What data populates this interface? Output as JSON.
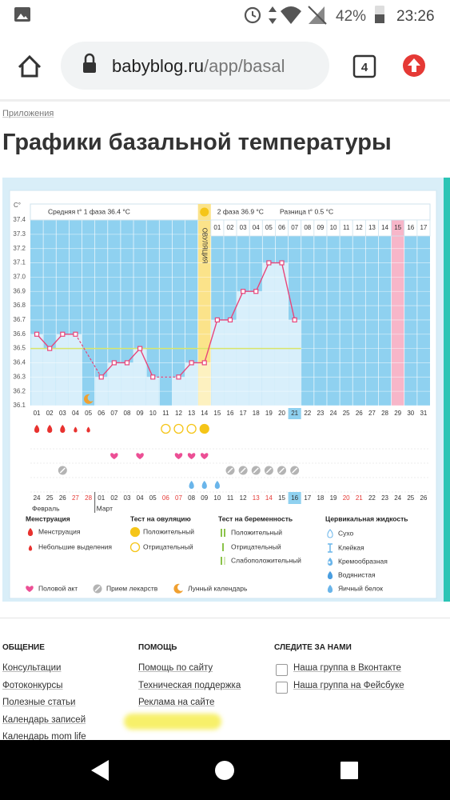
{
  "status": {
    "battery": "42%",
    "time": "23:26"
  },
  "browser": {
    "url_host": "babyblog.ru",
    "url_path": "/app/basal",
    "tab_count": 4
  },
  "breadcrumb": "Приложения",
  "title": "Графики базальной температуры",
  "chart_data": {
    "type": "line",
    "y_unit": "C°",
    "categories": [
      "01",
      "02",
      "03",
      "04",
      "05",
      "06",
      "07",
      "08",
      "09",
      "10",
      "11",
      "12",
      "13",
      "14",
      "15",
      "16",
      "17",
      "18",
      "19",
      "20",
      "21",
      "22",
      "23",
      "24",
      "25",
      "26",
      "27",
      "28",
      "29",
      "30",
      "31"
    ],
    "values": [
      36.6,
      36.5,
      36.6,
      36.6,
      null,
      36.3,
      36.4,
      36.4,
      36.5,
      36.3,
      null,
      36.3,
      36.4,
      36.4,
      36.7,
      36.7,
      36.9,
      36.9,
      37.1,
      37.1,
      36.7,
      null,
      null,
      null,
      null,
      null,
      null,
      null,
      null,
      null,
      null
    ],
    "ylim": [
      36.1,
      37.4
    ],
    "yticks": [
      36.1,
      36.2,
      36.3,
      36.4,
      36.5,
      36.6,
      36.7,
      36.8,
      36.9,
      {
        "value": 37,
        "label": "37.0"
      },
      37.1,
      37.2,
      37.3,
      37.4
    ],
    "line_color": "#e8457a",
    "bar_color": "#d8effb",
    "background_color": "#8fd1f0",
    "coverline": 36.5,
    "phase1_label": "Средняя t° 1 фаза 36.4 °C",
    "phase2_label": "2 фаза 36.9 °C",
    "difference_label": "Разница t° 0.5 °C",
    "ovulation_label": "ОВУЛЯЦИЯ",
    "ovulation_day": 14,
    "pink_day": 29,
    "today": 21,
    "dpo_start_day": 15,
    "dpo_labels": [
      "01",
      "02",
      "03",
      "04",
      "05",
      "06",
      "07",
      "08",
      "09",
      "10",
      "11",
      "12",
      "13",
      "14",
      "15",
      "16",
      "17"
    ],
    "markers": {
      "heavy_flow": [
        1,
        2,
        3
      ],
      "light_flow": [
        4,
        5
      ],
      "ovulation_negative": [
        11,
        12,
        13
      ],
      "ovulation_positive": [
        14
      ],
      "intercourse": [
        7,
        9,
        12,
        13,
        14
      ],
      "medication": [
        3,
        16,
        17,
        18,
        19,
        20,
        21
      ],
      "cervical": [
        13,
        14,
        15
      ],
      "lunar": [
        5
      ]
    },
    "dates": [
      "24",
      "25",
      "26",
      "27",
      "28",
      "01",
      "02",
      "03",
      "04",
      "05",
      "06",
      "07",
      "08",
      "09",
      "10",
      "11",
      "12",
      "13",
      "14",
      "15",
      "16",
      "17",
      "18",
      "19",
      "20",
      "21",
      "22",
      "23",
      "24",
      "25",
      "26"
    ],
    "red_date_days": [
      4,
      5,
      11,
      12,
      18,
      19,
      25,
      26
    ],
    "months": [
      {
        "label": "Февраль",
        "day": 1
      },
      {
        "label": "Март",
        "day": 6
      }
    ],
    "legend": {
      "groups": [
        {
          "title": "Менструация",
          "items": [
            "Менструация",
            "Небольшие выделения"
          ]
        },
        {
          "title": "Тест на овуляцию",
          "items": [
            "Положительный",
            "Отрицательный"
          ]
        },
        {
          "title": "Тест на беременность",
          "items": [
            "Положительный",
            "Отрицательный",
            "Слабоположительный"
          ]
        },
        {
          "title": "Цервикальная жидкость",
          "items": [
            "Сухо",
            "Клейкая",
            "Кремообразная",
            "Водянистая",
            "Яичный белок"
          ]
        }
      ],
      "extra": [
        "Половой акт",
        "Прием лекарств",
        "Лунный календарь"
      ]
    }
  },
  "footer": {
    "columns": [
      {
        "title": "ОБЩЕНИЕ",
        "links": [
          "Консультации",
          "Фотоконкурсы",
          "Полезные статьи",
          "Календарь записей",
          "Календарь mom life"
        ]
      },
      {
        "title": "ПОМОЩЬ",
        "links": [
          "Помощь по сайту",
          "Техническая поддержка",
          "Реклама на сайте"
        ]
      },
      {
        "title": "СЛЕДИТЕ ЗА НАМИ",
        "links": [
          "Наша группа в Вконтакте",
          "Наша группа на Фейсбуке"
        ]
      }
    ]
  }
}
